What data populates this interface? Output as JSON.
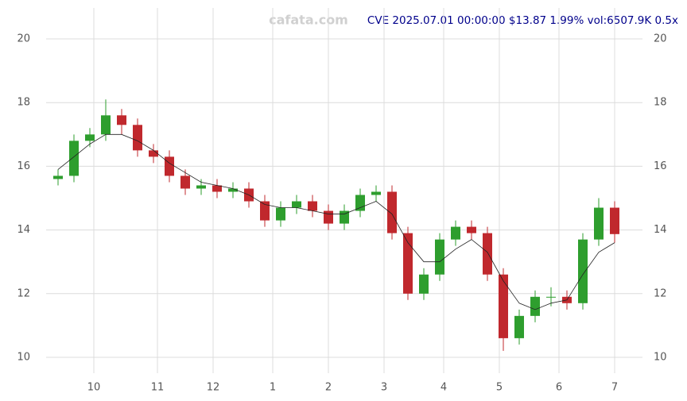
{
  "chart_data": {
    "type": "candlestick",
    "title": "CVE 2025.07.01 00:00:00 $13.87 1.99% vol:6507.9K 0.5x",
    "watermark": "cafata.com",
    "x": [
      0,
      4,
      8,
      12,
      16,
      20,
      24,
      28,
      32,
      36,
      40,
      44,
      48,
      52,
      56,
      60,
      64,
      68,
      72,
      76,
      80,
      84,
      88,
      92,
      96,
      100,
      104,
      108,
      112,
      116,
      120,
      124,
      128,
      132,
      136,
      140
    ],
    "open": [
      15.6,
      15.7,
      16.8,
      17.0,
      17.6,
      17.3,
      16.5,
      16.3,
      15.7,
      15.3,
      15.4,
      15.2,
      15.3,
      14.9,
      14.3,
      14.7,
      14.9,
      14.6,
      14.2,
      14.6,
      15.1,
      15.2,
      13.9,
      12.0,
      12.6,
      13.7,
      14.1,
      13.9,
      12.6,
      10.6,
      11.3,
      11.9,
      11.9,
      11.7,
      13.7,
      14.7
    ],
    "high": [
      15.9,
      17.0,
      17.2,
      18.1,
      17.8,
      17.5,
      16.7,
      16.5,
      15.9,
      15.6,
      15.6,
      15.5,
      15.5,
      15.1,
      14.9,
      15.1,
      15.1,
      14.8,
      14.8,
      15.3,
      15.4,
      15.4,
      14.1,
      12.8,
      13.9,
      14.3,
      14.3,
      14.1,
      12.8,
      11.5,
      12.1,
      12.2,
      12.1,
      13.9,
      15.0,
      14.9
    ],
    "low": [
      15.4,
      15.5,
      16.6,
      16.8,
      17.0,
      16.3,
      16.1,
      15.5,
      15.1,
      15.1,
      15.0,
      15.0,
      14.7,
      14.1,
      14.1,
      14.5,
      14.4,
      14.0,
      14.0,
      14.4,
      14.9,
      13.7,
      11.8,
      11.8,
      12.4,
      13.5,
      13.7,
      12.4,
      10.2,
      10.4,
      11.1,
      11.6,
      11.5,
      11.5,
      13.5,
      13.6
    ],
    "close": [
      15.7,
      16.8,
      17.0,
      17.6,
      17.3,
      16.5,
      16.3,
      15.7,
      15.3,
      15.4,
      15.2,
      15.3,
      14.9,
      14.3,
      14.7,
      14.9,
      14.6,
      14.2,
      14.6,
      15.1,
      15.2,
      13.9,
      12.0,
      12.6,
      13.7,
      14.1,
      13.9,
      12.6,
      10.6,
      11.3,
      11.9,
      11.9,
      11.7,
      13.7,
      14.7,
      13.87
    ],
    "ma": [
      15.9,
      16.3,
      16.7,
      17.0,
      17.0,
      16.8,
      16.5,
      16.1,
      15.8,
      15.5,
      15.4,
      15.3,
      15.1,
      14.8,
      14.7,
      14.7,
      14.6,
      14.5,
      14.5,
      14.7,
      14.9,
      14.5,
      13.6,
      13.0,
      13.0,
      13.4,
      13.7,
      13.3,
      12.4,
      11.7,
      11.5,
      11.7,
      11.8,
      12.6,
      13.3,
      13.6
    ],
    "up_color": "#2e9e2e",
    "down_color": "#c0282d",
    "ma_color": "#222222",
    "xlim": [
      -3,
      147
    ],
    "ylim": [
      9.5,
      20.6
    ],
    "xticks": [
      {
        "value": 9,
        "label": "10"
      },
      {
        "value": 25,
        "label": "11"
      },
      {
        "value": 39,
        "label": "12"
      },
      {
        "value": 54,
        "label": "1"
      },
      {
        "value": 68,
        "label": "2"
      },
      {
        "value": 82,
        "label": "3"
      },
      {
        "value": 97,
        "label": "4"
      },
      {
        "value": 111,
        "label": "5"
      },
      {
        "value": 126,
        "label": "6"
      },
      {
        "value": 140,
        "label": "7"
      }
    ],
    "yticks": [
      10,
      12,
      14,
      16,
      18,
      20
    ],
    "grid": true
  }
}
